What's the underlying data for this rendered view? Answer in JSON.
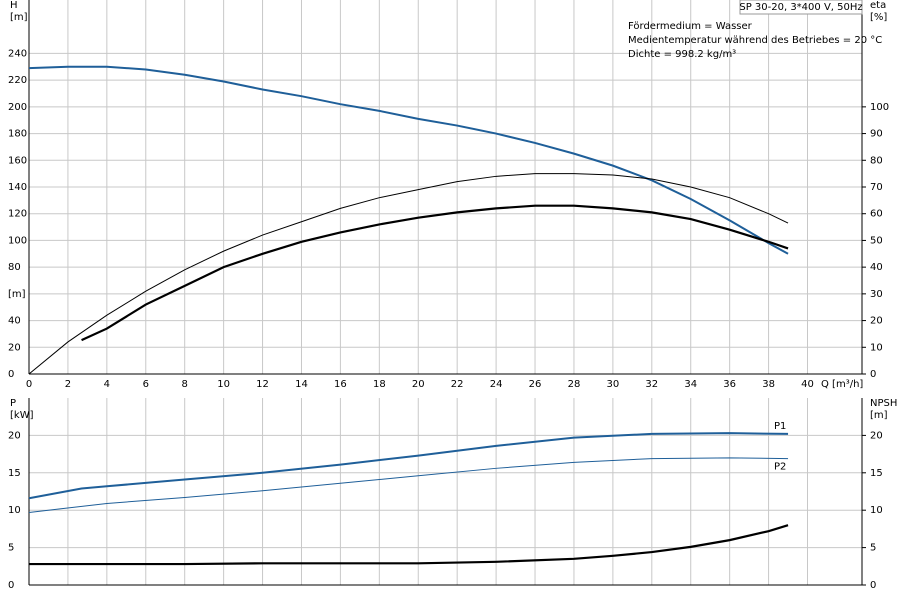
{
  "chart_data": [
    {
      "type": "line",
      "title": "SP 30-20, 3*400 V, 50Hz",
      "annotations": [
        "Fördermedium = Wasser",
        "Medientemperatur während des Betriebes = 20 °C",
        "Dichte = 998.2 kg/m³"
      ],
      "ylabel": [
        "H",
        "[m]"
      ],
      "y2label": [
        "eta",
        "[%]"
      ],
      "xlabel": "Q [m³/h]",
      "xlim": [
        0,
        42.8
      ],
      "xticks": [
        0,
        2,
        4,
        6,
        8,
        10,
        12,
        14,
        16,
        18,
        20,
        22,
        24,
        26,
        28,
        30,
        32,
        34,
        36,
        38,
        40
      ],
      "ylim": [
        0,
        280
      ],
      "yticks": [
        0,
        20,
        40,
        {
          "value": 60,
          "label": "[m]"
        },
        80,
        100,
        120,
        140,
        160,
        180,
        200,
        220,
        240
      ],
      "y2lim": [
        0,
        140
      ],
      "y2ticks": [
        0,
        10,
        20,
        30,
        40,
        50,
        60,
        70,
        80,
        90,
        100
      ],
      "grid": true,
      "xtick_labels": true,
      "series": [
        {
          "color": "#1f5f99",
          "width": 2,
          "x": [
            0,
            2,
            4,
            6,
            8,
            10,
            12,
            14,
            16,
            18,
            20,
            22,
            24,
            26,
            28,
            30,
            32,
            34,
            36,
            38,
            39
          ],
          "values": [
            229,
            230,
            230,
            228,
            224,
            219,
            213,
            208,
            202,
            197,
            191,
            186,
            180,
            173,
            165,
            156,
            145,
            131,
            115,
            98,
            90
          ]
        },
        {
          "color": "#000000",
          "width": 1,
          "axis": "y2",
          "x": [
            0,
            2,
            4,
            6,
            8,
            10,
            12,
            14,
            16,
            18,
            20,
            22,
            24,
            26,
            28,
            30,
            32,
            34,
            36,
            38,
            39
          ],
          "values": [
            0,
            12,
            22,
            31,
            39,
            46,
            52,
            57,
            62,
            66,
            69,
            72,
            74,
            75,
            75,
            74.5,
            73,
            70,
            66,
            60,
            56.5
          ]
        },
        {
          "color": "#000000",
          "width": 2.2,
          "axis": "y2",
          "x": [
            2.7,
            4,
            6,
            8,
            10,
            12,
            14,
            16,
            18,
            20,
            22,
            24,
            26,
            28,
            30,
            32,
            34,
            36,
            38,
            39
          ],
          "values": [
            12.7,
            17,
            26,
            33,
            40,
            45,
            49.5,
            53,
            56,
            58.5,
            60.5,
            62,
            63,
            63,
            62,
            60.5,
            58,
            54,
            49.5,
            47
          ]
        }
      ]
    },
    {
      "type": "line",
      "ylabel": [
        "P",
        "[kW]"
      ],
      "y2label": [
        "NPSH",
        "[m]"
      ],
      "xlim": [
        0,
        42.8
      ],
      "xticks": [
        0,
        2,
        4,
        6,
        8,
        10,
        12,
        14,
        16,
        18,
        20,
        22,
        24,
        26,
        28,
        30,
        32,
        34,
        36,
        38,
        40
      ],
      "ylim": [
        0,
        25
      ],
      "yticks": [
        0,
        5,
        10,
        15,
        20
      ],
      "y2lim": [
        0,
        25
      ],
      "y2ticks": [
        0,
        5,
        10,
        15,
        20
      ],
      "grid": true,
      "xtick_labels": false,
      "series": [
        {
          "name": "P1",
          "color": "#1f5f99",
          "width": 2,
          "x": [
            0,
            2.7,
            4,
            8,
            12,
            16,
            20,
            24,
            28,
            32,
            36,
            39
          ],
          "values": [
            11.6,
            12.9,
            13.2,
            14.1,
            15.0,
            16.1,
            17.3,
            18.6,
            19.7,
            20.2,
            20.3,
            20.2
          ]
        },
        {
          "name": "P2",
          "color": "#1f5f99",
          "width": 1,
          "x": [
            0,
            4,
            8,
            12,
            16,
            20,
            24,
            28,
            32,
            36,
            39
          ],
          "values": [
            9.7,
            10.9,
            11.7,
            12.6,
            13.6,
            14.6,
            15.6,
            16.4,
            16.9,
            17.0,
            16.9
          ]
        },
        {
          "color": "#000000",
          "width": 2.2,
          "axis": "y2",
          "x": [
            0,
            2.7,
            8,
            12,
            16,
            20,
            24,
            28,
            30,
            32,
            34,
            36,
            38,
            39
          ],
          "values": [
            2.8,
            2.8,
            2.8,
            2.9,
            2.9,
            2.9,
            3.1,
            3.5,
            3.9,
            4.4,
            5.1,
            6.0,
            7.2,
            8.0
          ]
        }
      ]
    }
  ]
}
